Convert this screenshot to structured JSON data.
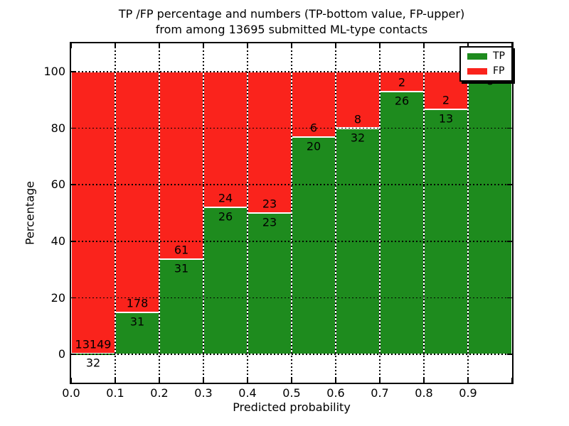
{
  "title": {
    "line1": "TP /FP percentage and numbers (TP-bottom value, FP-upper)",
    "line2": "from among 13695 submitted ML-type contacts"
  },
  "axes": {
    "x_label": "Predicted probability",
    "y_label": "Percentage",
    "x_tick_labels": [
      "0.0",
      "0.1",
      "0.2",
      "0.3",
      "0.4",
      "0.5",
      "0.6",
      "0.7",
      "0.8",
      "0.9"
    ],
    "y_tick_labels": [
      "0",
      "20",
      "40",
      "60",
      "80",
      "100"
    ],
    "y_tick_values": [
      0,
      20,
      40,
      60,
      80,
      100
    ]
  },
  "legend": {
    "position": "upper right",
    "entries": [
      {
        "label": "TP",
        "color": "#1e8b1e"
      },
      {
        "label": "FP",
        "color": "#fa231c"
      }
    ]
  },
  "colors": {
    "tp": "#1e8b1e",
    "fp": "#fa231c",
    "grid": "#000000",
    "background": "#ffffff",
    "text": "#000000"
  },
  "chart_data": {
    "type": "bar",
    "stacked": true,
    "normalized_to_percent": true,
    "title": "TP /FP percentage and numbers (TP-bottom value, FP-upper) from among 13695 submitted ML-type contacts",
    "xlabel": "Predicted probability",
    "ylabel": "Percentage",
    "categories": [
      "0.0-0.1",
      "0.1-0.2",
      "0.2-0.3",
      "0.3-0.4",
      "0.4-0.5",
      "0.5-0.6",
      "0.6-0.7",
      "0.7-0.8",
      "0.8-0.9",
      "0.9-1.0"
    ],
    "bin_starts": [
      0.0,
      0.1,
      0.2,
      0.3,
      0.4,
      0.5,
      0.6,
      0.7,
      0.8,
      0.9
    ],
    "bin_width": 0.1,
    "series": [
      {
        "name": "TP",
        "color": "#1e8b1e",
        "counts": [
          32,
          31,
          31,
          26,
          23,
          20,
          32,
          26,
          13,
          8
        ]
      },
      {
        "name": "FP",
        "color": "#fa231c",
        "counts": [
          13149,
          178,
          61,
          24,
          23,
          6,
          8,
          2,
          2,
          0
        ]
      }
    ],
    "tp_percent": [
      0.24,
      14.83,
      33.7,
      52.0,
      50.0,
      76.92,
      80.0,
      92.86,
      86.67,
      100.0
    ],
    "total_contacts": 13695,
    "xlim": [
      0.0,
      1.0
    ],
    "ylim": [
      -10,
      110
    ],
    "grid": "dotted",
    "legend_position": "upper right"
  }
}
